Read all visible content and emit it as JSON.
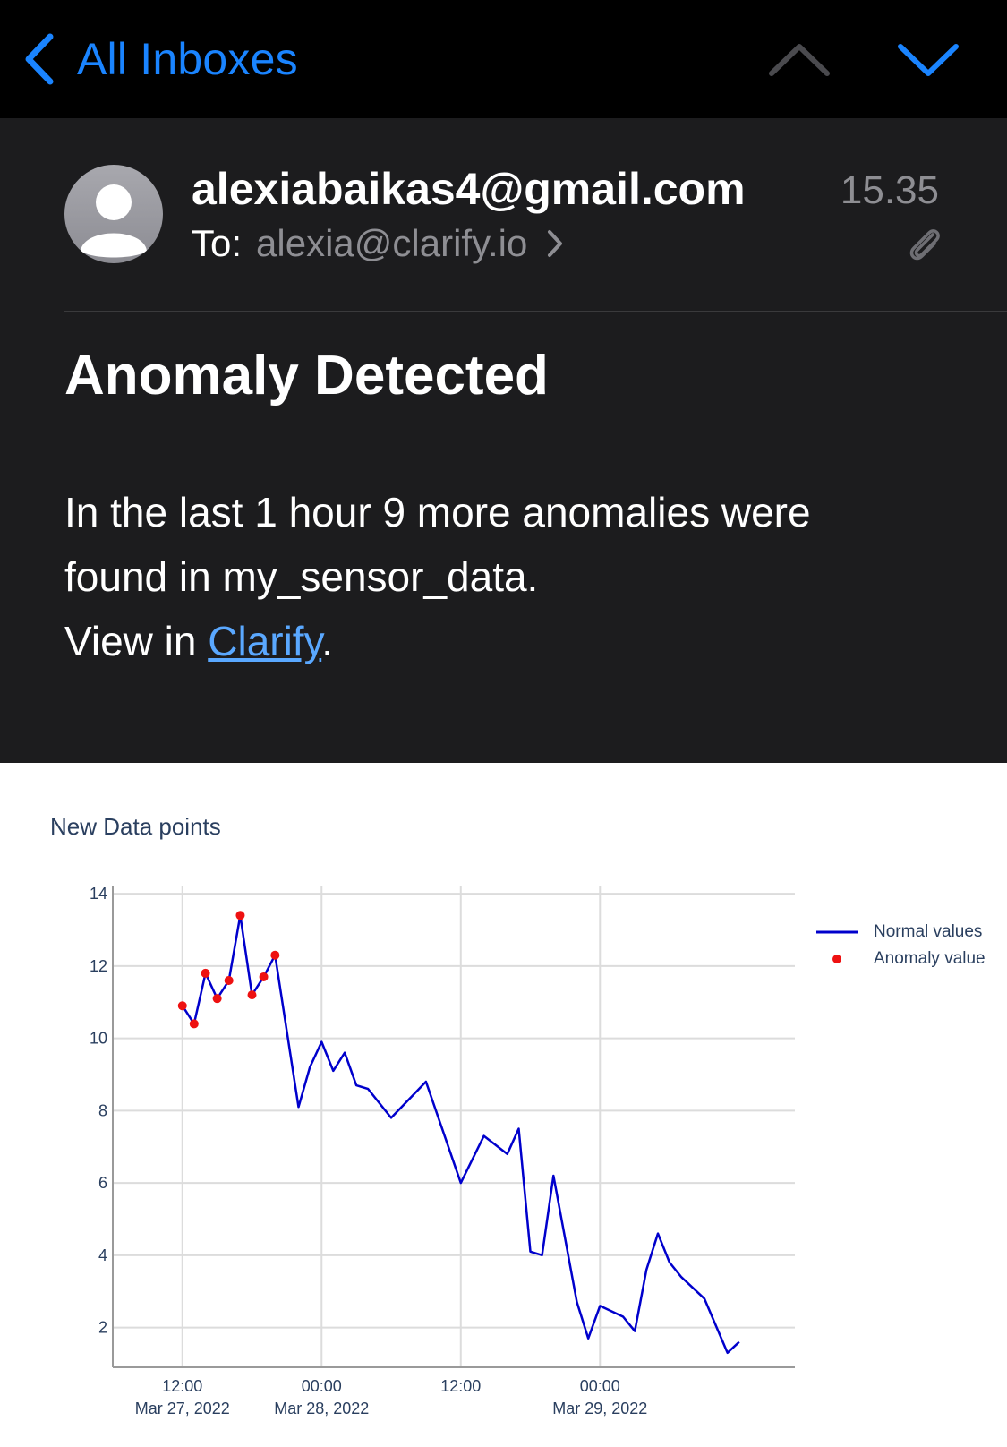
{
  "nav": {
    "back_label": "All Inboxes"
  },
  "message": {
    "sender": "alexiabaikas4@gmail.com",
    "time": "15.35",
    "to_label": "To:",
    "to_address": "alexia@clarify.io",
    "subject": "Anomaly Detected",
    "body_line1": "In the last 1 hour 9 more anomalies were",
    "body_line2": "found in my_sensor_data.",
    "view_prefix": "View in ",
    "view_link": "Clarify",
    "view_suffix": "."
  },
  "colors": {
    "accent": "#1a84ff",
    "link": "#5aa8ff",
    "normal_series": "#0000cc",
    "anomaly_series": "#ee1111"
  },
  "chart_data": {
    "type": "line",
    "title": "New Data points",
    "ylim": [
      0.9,
      14.2
    ],
    "xlim": [
      -0.25,
      2.2
    ],
    "y_ticks": [
      2,
      4,
      6,
      8,
      10,
      12,
      14
    ],
    "x_ticks": [
      {
        "value": 0,
        "line1": "12:00",
        "line2": "Mar 27, 2022"
      },
      {
        "value": 0.5,
        "line1": "00:00",
        "line2": "Mar 28, 2022"
      },
      {
        "value": 1,
        "line1": "12:00",
        "line2": ""
      },
      {
        "value": 1.5,
        "line1": "00:00",
        "line2": "Mar 29, 2022"
      }
    ],
    "grid": true,
    "legend_position": "top-right",
    "series": [
      {
        "name": "Normal values",
        "style": "line",
        "x": [
          0,
          0.042,
          0.083,
          0.125,
          0.167,
          0.208,
          0.25,
          0.292,
          0.333,
          0.417,
          0.458,
          0.5,
          0.542,
          0.583,
          0.625,
          0.667,
          0.75,
          0.875,
          1.0,
          1.083,
          1.167,
          1.208,
          1.25,
          1.292,
          1.333,
          1.417,
          1.458,
          1.5,
          1.583,
          1.625,
          1.667,
          1.708,
          1.75,
          1.792,
          1.875,
          1.958,
          2.0
        ],
        "y": [
          10.9,
          10.4,
          11.8,
          11.1,
          11.6,
          13.4,
          11.2,
          11.7,
          12.3,
          8.1,
          9.2,
          9.9,
          9.1,
          9.6,
          8.7,
          8.6,
          7.8,
          8.8,
          6.0,
          7.3,
          6.8,
          7.5,
          4.1,
          4.0,
          6.2,
          2.7,
          1.7,
          2.6,
          2.3,
          1.9,
          3.6,
          4.6,
          3.8,
          3.4,
          2.8,
          1.3,
          1.6
        ]
      },
      {
        "name": "Anomaly value",
        "style": "markers",
        "x": [
          0,
          0.042,
          0.083,
          0.125,
          0.167,
          0.208,
          0.25,
          0.292,
          0.333
        ],
        "y": [
          10.9,
          10.4,
          11.8,
          11.1,
          11.6,
          13.4,
          11.2,
          11.7,
          12.3
        ]
      }
    ]
  }
}
